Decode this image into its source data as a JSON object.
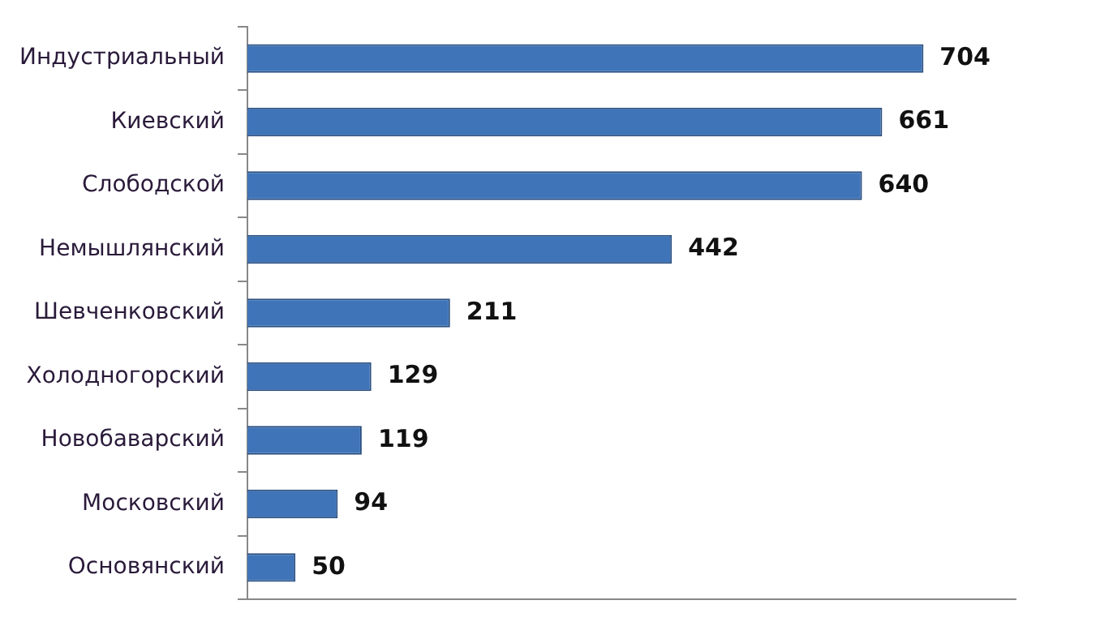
{
  "chart_data": {
    "type": "bar",
    "orientation": "horizontal",
    "categories": [
      "Индустриальный",
      "Киевский",
      "Слободской",
      "Немышлянский",
      "Шевченковский",
      "Холодногорский",
      "Новобаварский",
      "Московский",
      "Основянский"
    ],
    "values": [
      704,
      661,
      640,
      442,
      211,
      129,
      119,
      94,
      50
    ],
    "color": "#3f74b8",
    "tick_labels": "y",
    "legend": false,
    "data_labels": true
  }
}
